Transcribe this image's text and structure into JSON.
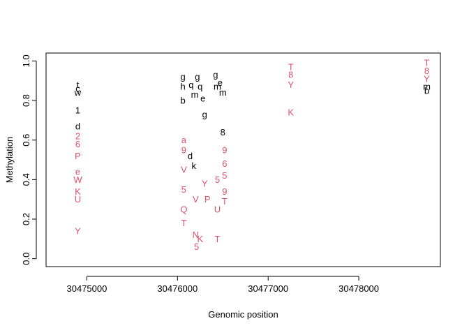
{
  "chart_data": {
    "type": "scatter",
    "title": "",
    "xlabel": "Genomic position",
    "ylabel": "Methylation",
    "xlim": [
      30474550,
      30478900
    ],
    "ylim": [
      -0.04,
      1.04
    ],
    "xticks": [
      30475000,
      30476000,
      30477000,
      30478000
    ],
    "xtick_labels": [
      "30475000",
      "30476000",
      "30477000",
      "30478000"
    ],
    "yticks": [
      0.0,
      0.2,
      0.4,
      0.6,
      0.8,
      1.0
    ],
    "ytick_labels": [
      "0.0",
      "0.2",
      "0.4",
      "0.6",
      "0.8",
      "1.0"
    ],
    "grid": false,
    "colors": {
      "series_black": "#000000",
      "series_red": "#df536b"
    },
    "series": [
      {
        "color": "#000000",
        "points": [
          {
            "x": 30474900,
            "y": 0.88,
            "label": "t"
          },
          {
            "x": 30474900,
            "y": 0.86,
            "label": "c"
          },
          {
            "x": 30474900,
            "y": 0.84,
            "label": "w"
          },
          {
            "x": 30474900,
            "y": 0.75,
            "label": "1"
          },
          {
            "x": 30474900,
            "y": 0.67,
            "label": "d"
          },
          {
            "x": 30476060,
            "y": 0.92,
            "label": "g"
          },
          {
            "x": 30476060,
            "y": 0.87,
            "label": "h"
          },
          {
            "x": 30476060,
            "y": 0.8,
            "label": "b"
          },
          {
            "x": 30476150,
            "y": 0.88,
            "label": "q"
          },
          {
            "x": 30476190,
            "y": 0.83,
            "label": "m"
          },
          {
            "x": 30476220,
            "y": 0.92,
            "label": "g"
          },
          {
            "x": 30476250,
            "y": 0.87,
            "label": "q"
          },
          {
            "x": 30476280,
            "y": 0.81,
            "label": "e"
          },
          {
            "x": 30476300,
            "y": 0.73,
            "label": "g"
          },
          {
            "x": 30476420,
            "y": 0.93,
            "label": "g"
          },
          {
            "x": 30476440,
            "y": 0.87,
            "label": "m"
          },
          {
            "x": 30476470,
            "y": 0.89,
            "label": "e"
          },
          {
            "x": 30476500,
            "y": 0.84,
            "label": "m"
          },
          {
            "x": 30476500,
            "y": 0.64,
            "label": "8"
          },
          {
            "x": 30476140,
            "y": 0.52,
            "label": "d"
          },
          {
            "x": 30476180,
            "y": 0.47,
            "label": "k"
          },
          {
            "x": 30478750,
            "y": 0.87,
            "label": "m"
          },
          {
            "x": 30478750,
            "y": 0.85,
            "label": "b"
          }
        ]
      },
      {
        "color": "#df536b",
        "points": [
          {
            "x": 30474900,
            "y": 0.62,
            "label": "2"
          },
          {
            "x": 30474900,
            "y": 0.58,
            "label": "6"
          },
          {
            "x": 30474900,
            "y": 0.52,
            "label": "P"
          },
          {
            "x": 30474900,
            "y": 0.44,
            "label": "e"
          },
          {
            "x": 30474900,
            "y": 0.4,
            "label": "W"
          },
          {
            "x": 30474900,
            "y": 0.34,
            "label": "K"
          },
          {
            "x": 30474900,
            "y": 0.3,
            "label": "U"
          },
          {
            "x": 30474900,
            "y": 0.14,
            "label": "Y"
          },
          {
            "x": 30476070,
            "y": 0.6,
            "label": "a"
          },
          {
            "x": 30476070,
            "y": 0.55,
            "label": "9"
          },
          {
            "x": 30476070,
            "y": 0.45,
            "label": "V"
          },
          {
            "x": 30476070,
            "y": 0.35,
            "label": "5"
          },
          {
            "x": 30476070,
            "y": 0.25,
            "label": "Q"
          },
          {
            "x": 30476070,
            "y": 0.18,
            "label": "T"
          },
          {
            "x": 30476200,
            "y": 0.3,
            "label": "V"
          },
          {
            "x": 30476200,
            "y": 0.12,
            "label": "N"
          },
          {
            "x": 30476210,
            "y": 0.06,
            "label": "5"
          },
          {
            "x": 30476250,
            "y": 0.1,
            "label": "K"
          },
          {
            "x": 30476300,
            "y": 0.38,
            "label": "Y"
          },
          {
            "x": 30476330,
            "y": 0.3,
            "label": "P"
          },
          {
            "x": 30476440,
            "y": 0.4,
            "label": "5"
          },
          {
            "x": 30476440,
            "y": 0.25,
            "label": "U"
          },
          {
            "x": 30476440,
            "y": 0.1,
            "label": "T"
          },
          {
            "x": 30476520,
            "y": 0.55,
            "label": "9"
          },
          {
            "x": 30476520,
            "y": 0.48,
            "label": "6"
          },
          {
            "x": 30476520,
            "y": 0.42,
            "label": "5"
          },
          {
            "x": 30476520,
            "y": 0.34,
            "label": "9"
          },
          {
            "x": 30476520,
            "y": 0.29,
            "label": "T"
          },
          {
            "x": 30477250,
            "y": 0.97,
            "label": "T"
          },
          {
            "x": 30477250,
            "y": 0.93,
            "label": "8"
          },
          {
            "x": 30477250,
            "y": 0.88,
            "label": "Y"
          },
          {
            "x": 30477250,
            "y": 0.74,
            "label": "K"
          },
          {
            "x": 30478750,
            "y": 0.99,
            "label": "T"
          },
          {
            "x": 30478750,
            "y": 0.95,
            "label": "8"
          },
          {
            "x": 30478750,
            "y": 0.91,
            "label": "Y"
          }
        ]
      }
    ]
  }
}
